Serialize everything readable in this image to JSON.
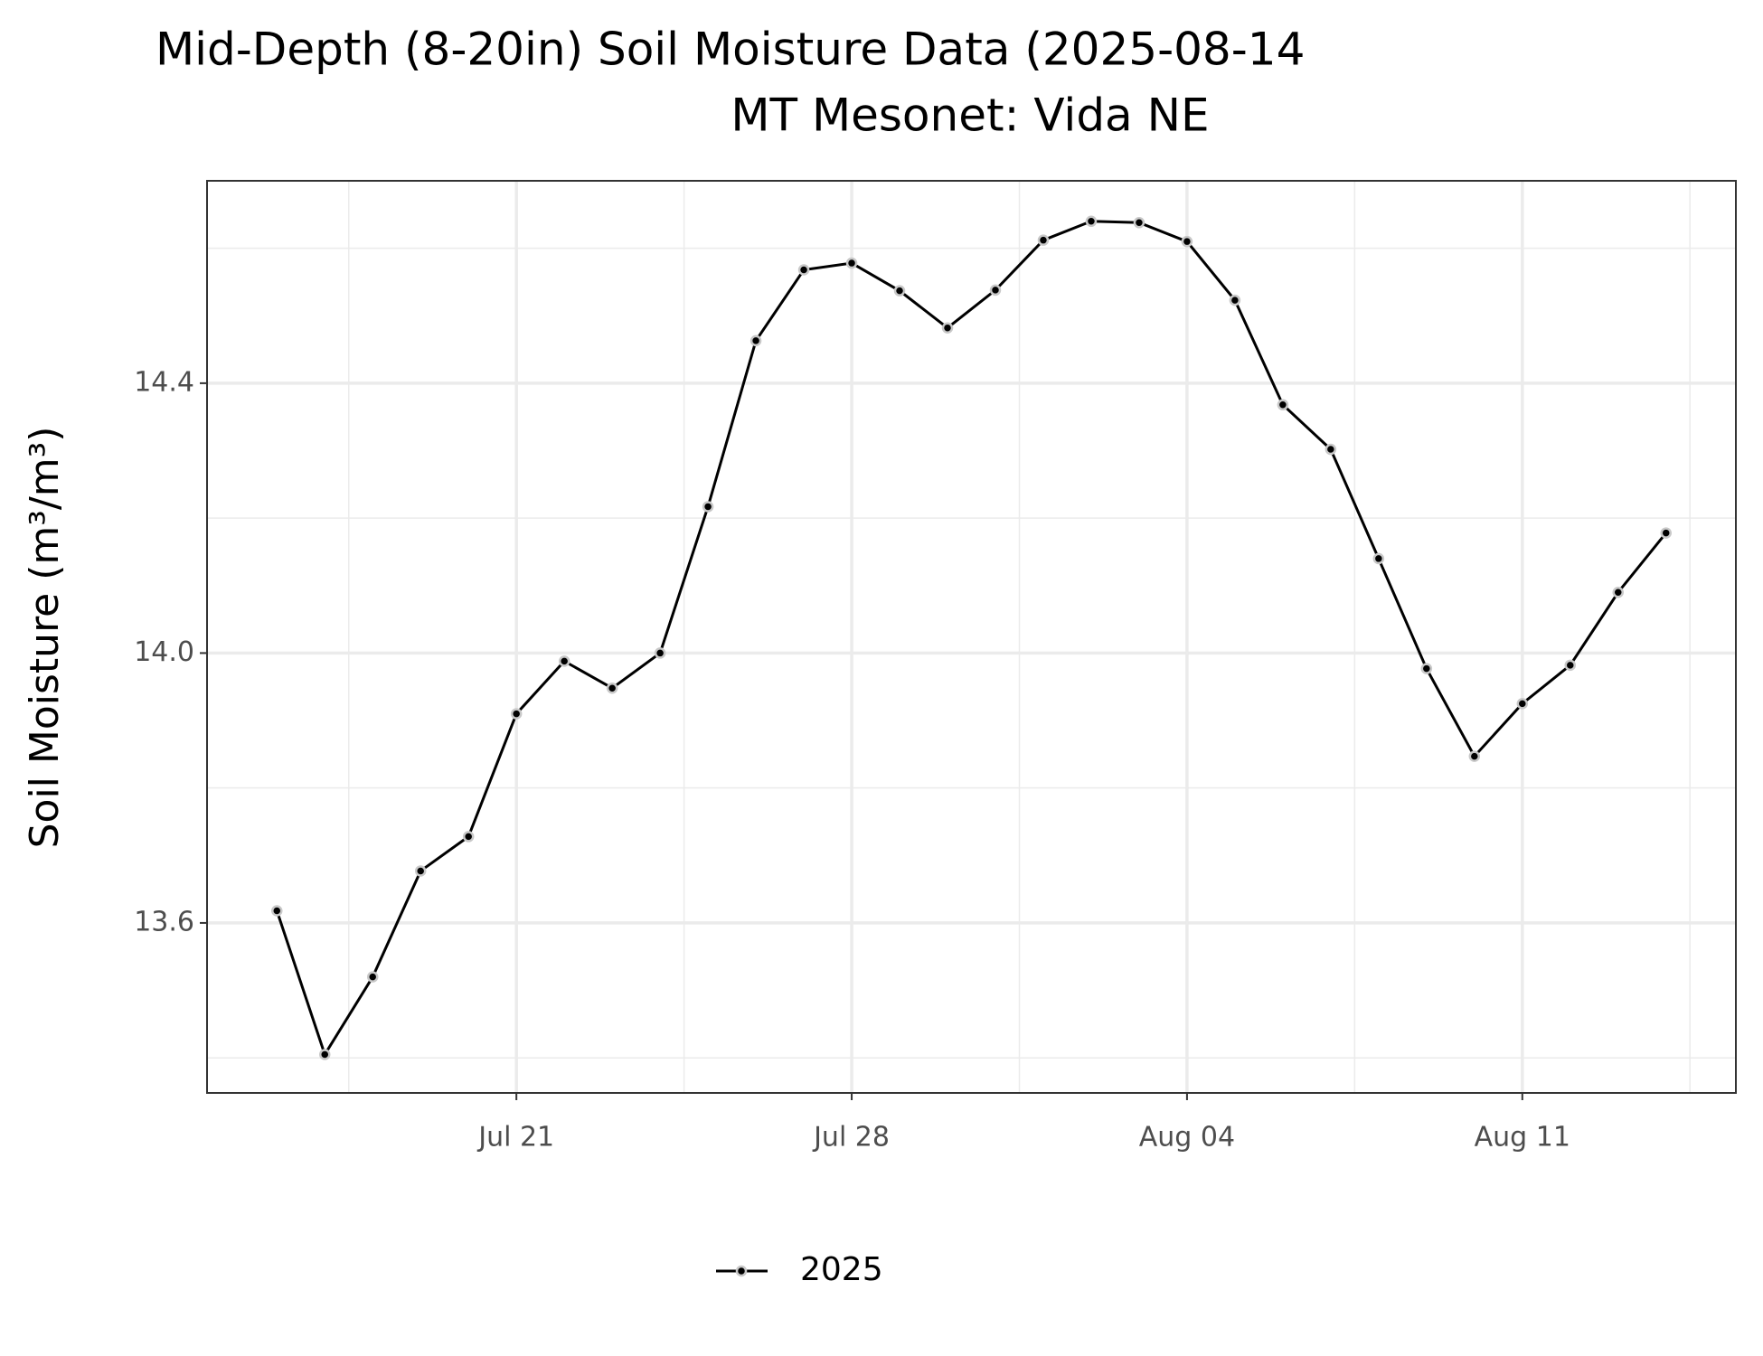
{
  "chart_data": {
    "type": "line",
    "title": "Mid-Depth (8-20in) Soil Moisture Data (2025-08-14",
    "subtitle": "MT Mesonet: Vida NE",
    "y_label": "Soil Moisture (m³/m³)",
    "x": [
      "07-16",
      "07-17",
      "07-18",
      "07-19",
      "07-20",
      "07-21",
      "07-22",
      "07-23",
      "07-24",
      "07-25",
      "07-26",
      "07-27",
      "07-28",
      "07-29",
      "07-30",
      "07-31",
      "08-01",
      "08-02",
      "08-03",
      "08-04",
      "08-05",
      "08-06",
      "08-07",
      "08-08",
      "08-09",
      "08-10",
      "08-11",
      "08-12",
      "08-13",
      "08-14"
    ],
    "series": [
      {
        "name": "2025",
        "color": "#000000",
        "values": [
          13.618,
          13.405,
          13.52,
          13.677,
          13.728,
          13.91,
          13.988,
          13.948,
          14.0,
          14.217,
          14.463,
          14.568,
          14.578,
          14.537,
          14.482,
          14.538,
          14.612,
          14.64,
          14.638,
          14.61,
          14.523,
          14.368,
          14.302,
          14.14,
          13.977,
          13.847,
          13.925,
          13.982,
          14.09,
          14.178
        ]
      }
    ],
    "xlim": [
      "07-14T13",
      "08-15T11"
    ],
    "xticks": [
      {
        "value": "07-21",
        "label": "Jul 21"
      },
      {
        "value": "07-28",
        "label": "Jul 28"
      },
      {
        "value": "08-04",
        "label": "Aug 04"
      },
      {
        "value": "08-11",
        "label": "Aug 11"
      }
    ],
    "xminor": [
      "07-17T12",
      "07-24T12",
      "07-31T12",
      "08-07T12",
      "08-14T12"
    ],
    "ylim": [
      13.348,
      14.7
    ],
    "yticks": [
      13.6,
      {
        "value": 14.0,
        "label": "14.0"
      },
      14.4
    ],
    "yminor": [
      13.4,
      13.8,
      14.2,
      14.6
    ],
    "grid": true,
    "legend": "bottom"
  }
}
